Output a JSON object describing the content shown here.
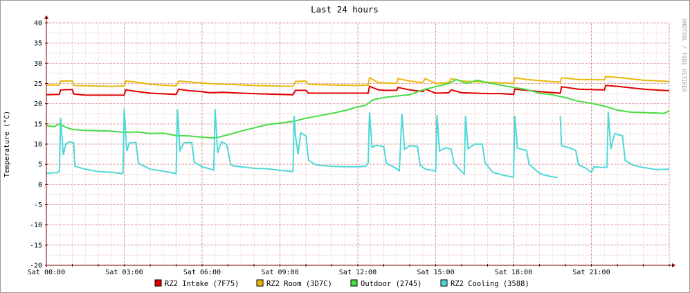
{
  "chart_data": {
    "type": "line",
    "title": "Last 24 hours",
    "ylabel": "Temperature (°C)",
    "watermark": "RRDTOOL / TOBI OETIKER",
    "ylim": [
      -20,
      40
    ],
    "xlim": [
      0,
      24
    ],
    "y_ticks": [
      40,
      35,
      30,
      25,
      20,
      15,
      10,
      5,
      0,
      -5,
      -10,
      -15,
      -20
    ],
    "y_tick_labels": [
      "40",
      "35",
      "30",
      "25",
      "20",
      "15",
      "10",
      "5",
      "0",
      "-5",
      "-10",
      "-15",
      "-20"
    ],
    "x_ticks": [
      0,
      3,
      6,
      9,
      12,
      15,
      18,
      21
    ],
    "x_tick_labels": [
      "Sat 00:00",
      "Sat 03:00",
      "Sat 06:00",
      "Sat 09:00",
      "Sat 12:00",
      "Sat 15:00",
      "Sat 18:00",
      "Sat 21:00"
    ],
    "grid": true,
    "legend_position": "bottom",
    "colors": {
      "background": "#ffffff",
      "minor_grid": "#e6a0a0",
      "major_grid": "#d07070",
      "axis": "#7a0000"
    },
    "series": [
      {
        "name": "RZ2 Intake (7F75)",
        "color": "#e00000",
        "points": [
          [
            0.0,
            22.2
          ],
          [
            0.5,
            22.3
          ],
          [
            0.55,
            23.4
          ],
          [
            1.0,
            23.5
          ],
          [
            1.05,
            22.4
          ],
          [
            1.5,
            22.1
          ],
          [
            2.5,
            22.1
          ],
          [
            3.0,
            22.1
          ],
          [
            3.05,
            23.4
          ],
          [
            3.4,
            23.1
          ],
          [
            4.0,
            22.6
          ],
          [
            5.0,
            22.3
          ],
          [
            5.1,
            23.6
          ],
          [
            5.5,
            23.2
          ],
          [
            6.0,
            23.0
          ],
          [
            6.3,
            22.7
          ],
          [
            6.8,
            22.8
          ],
          [
            7.5,
            22.6
          ],
          [
            8.5,
            22.4
          ],
          [
            9.5,
            22.2
          ],
          [
            9.6,
            23.3
          ],
          [
            10.0,
            23.3
          ],
          [
            10.1,
            22.6
          ],
          [
            11.0,
            22.6
          ],
          [
            12.0,
            22.6
          ],
          [
            12.4,
            22.6
          ],
          [
            12.45,
            24.3
          ],
          [
            12.8,
            23.4
          ],
          [
            13.0,
            23.3
          ],
          [
            13.5,
            23.3
          ],
          [
            13.55,
            24.0
          ],
          [
            14.0,
            23.4
          ],
          [
            14.5,
            23.0
          ],
          [
            14.6,
            23.6
          ],
          [
            15.0,
            22.6
          ],
          [
            15.5,
            22.7
          ],
          [
            15.6,
            23.4
          ],
          [
            16.0,
            22.7
          ],
          [
            17.0,
            22.5
          ],
          [
            17.5,
            22.5
          ],
          [
            18.0,
            22.3
          ],
          [
            18.05,
            23.6
          ],
          [
            18.5,
            23.3
          ],
          [
            19.0,
            23.0
          ],
          [
            19.8,
            22.6
          ],
          [
            19.85,
            24.2
          ],
          [
            20.5,
            23.6
          ],
          [
            21.5,
            23.4
          ],
          [
            21.55,
            24.5
          ],
          [
            22.0,
            24.3
          ],
          [
            23.0,
            23.6
          ],
          [
            24.0,
            23.2
          ]
        ]
      },
      {
        "name": "RZ2 Room (3D7C)",
        "color": "#e8b80a",
        "points": [
          [
            0.0,
            24.6
          ],
          [
            0.5,
            24.6
          ],
          [
            0.55,
            25.6
          ],
          [
            1.0,
            25.6
          ],
          [
            1.05,
            24.5
          ],
          [
            2.5,
            24.3
          ],
          [
            3.0,
            24.4
          ],
          [
            3.05,
            25.6
          ],
          [
            3.4,
            25.4
          ],
          [
            4.0,
            24.8
          ],
          [
            5.0,
            24.4
          ],
          [
            5.1,
            25.6
          ],
          [
            5.5,
            25.4
          ],
          [
            6.0,
            25.1
          ],
          [
            6.5,
            24.9
          ],
          [
            7.0,
            24.8
          ],
          [
            8.0,
            24.5
          ],
          [
            9.5,
            24.3
          ],
          [
            9.6,
            25.5
          ],
          [
            10.0,
            25.6
          ],
          [
            10.1,
            24.8
          ],
          [
            11.0,
            24.6
          ],
          [
            12.0,
            24.5
          ],
          [
            12.4,
            24.6
          ],
          [
            12.45,
            26.4
          ],
          [
            12.8,
            25.2
          ],
          [
            13.5,
            25.0
          ],
          [
            13.55,
            26.2
          ],
          [
            14.0,
            25.6
          ],
          [
            14.5,
            25.2
          ],
          [
            14.6,
            26.2
          ],
          [
            15.0,
            25.0
          ],
          [
            15.5,
            25.2
          ],
          [
            15.6,
            26.2
          ],
          [
            16.0,
            25.6
          ],
          [
            17.0,
            25.3
          ],
          [
            18.0,
            25.0
          ],
          [
            18.05,
            26.4
          ],
          [
            18.5,
            26.0
          ],
          [
            19.0,
            25.7
          ],
          [
            19.8,
            25.3
          ],
          [
            19.85,
            26.4
          ],
          [
            20.5,
            26.0
          ],
          [
            21.5,
            25.9
          ],
          [
            21.55,
            26.7
          ],
          [
            22.0,
            26.5
          ],
          [
            23.0,
            25.8
          ],
          [
            24.0,
            25.5
          ]
        ]
      },
      {
        "name": "Outdoor (2745)",
        "color": "#44dd44",
        "points": [
          [
            0.0,
            14.6
          ],
          [
            0.3,
            14.3
          ],
          [
            0.5,
            15.0
          ],
          [
            0.7,
            14.3
          ],
          [
            1.0,
            13.6
          ],
          [
            1.5,
            13.4
          ],
          [
            2.0,
            13.3
          ],
          [
            2.5,
            13.2
          ],
          [
            3.0,
            12.9
          ],
          [
            3.5,
            13.0
          ],
          [
            4.0,
            12.6
          ],
          [
            4.5,
            12.7
          ],
          [
            5.0,
            12.1
          ],
          [
            5.5,
            12.0
          ],
          [
            6.0,
            11.7
          ],
          [
            6.5,
            11.5
          ],
          [
            7.0,
            12.3
          ],
          [
            7.5,
            13.2
          ],
          [
            8.0,
            14.0
          ],
          [
            8.5,
            14.8
          ],
          [
            9.0,
            15.2
          ],
          [
            9.5,
            15.6
          ],
          [
            10.0,
            16.4
          ],
          [
            10.5,
            17.0
          ],
          [
            11.0,
            17.6
          ],
          [
            11.5,
            18.3
          ],
          [
            12.0,
            19.2
          ],
          [
            12.3,
            19.6
          ],
          [
            12.6,
            21.0
          ],
          [
            13.0,
            21.5
          ],
          [
            13.5,
            21.9
          ],
          [
            14.0,
            22.2
          ],
          [
            14.5,
            23.4
          ],
          [
            15.0,
            24.2
          ],
          [
            15.5,
            25.0
          ],
          [
            15.8,
            26.0
          ],
          [
            16.2,
            25.0
          ],
          [
            16.6,
            25.8
          ],
          [
            17.0,
            25.2
          ],
          [
            17.5,
            24.6
          ],
          [
            18.0,
            24.0
          ],
          [
            18.5,
            23.5
          ],
          [
            19.0,
            22.6
          ],
          [
            19.5,
            22.2
          ],
          [
            20.0,
            21.5
          ],
          [
            20.5,
            20.6
          ],
          [
            21.0,
            20.1
          ],
          [
            21.5,
            19.4
          ],
          [
            22.0,
            18.4
          ],
          [
            22.5,
            17.9
          ],
          [
            23.0,
            17.8
          ],
          [
            23.5,
            17.7
          ],
          [
            23.8,
            17.6
          ],
          [
            24.0,
            18.2
          ]
        ]
      },
      {
        "name": "RZ2 Cooling (3588)",
        "color": "#4dd8d8",
        "points": [
          [
            0.0,
            2.8
          ],
          [
            0.4,
            2.9
          ],
          [
            0.5,
            3.3
          ],
          [
            0.55,
            16.5
          ],
          [
            0.65,
            7.3
          ],
          [
            0.75,
            10.0
          ],
          [
            0.9,
            10.6
          ],
          [
            1.05,
            10.3
          ],
          [
            1.1,
            4.5
          ],
          [
            1.5,
            3.8
          ],
          [
            2.0,
            3.2
          ],
          [
            2.5,
            3.0
          ],
          [
            2.95,
            2.7
          ],
          [
            3.0,
            18.8
          ],
          [
            3.1,
            8.3
          ],
          [
            3.2,
            10.3
          ],
          [
            3.45,
            10.4
          ],
          [
            3.55,
            5.2
          ],
          [
            4.0,
            3.8
          ],
          [
            4.5,
            3.3
          ],
          [
            5.0,
            2.7
          ],
          [
            5.05,
            18.6
          ],
          [
            5.15,
            8.4
          ],
          [
            5.3,
            10.3
          ],
          [
            5.6,
            10.4
          ],
          [
            5.7,
            5.5
          ],
          [
            6.0,
            4.4
          ],
          [
            6.45,
            3.6
          ],
          [
            6.5,
            18.7
          ],
          [
            6.6,
            7.8
          ],
          [
            6.75,
            10.6
          ],
          [
            6.95,
            9.9
          ],
          [
            7.1,
            5.0
          ],
          [
            7.2,
            4.6
          ],
          [
            7.6,
            4.3
          ],
          [
            8.0,
            4.0
          ],
          [
            8.5,
            3.9
          ],
          [
            9.0,
            3.5
          ],
          [
            9.5,
            3.2
          ],
          [
            9.55,
            17.0
          ],
          [
            9.6,
            12.0
          ],
          [
            9.7,
            7.5
          ],
          [
            9.8,
            12.8
          ],
          [
            10.0,
            12.0
          ],
          [
            10.1,
            6.0
          ],
          [
            10.4,
            4.8
          ],
          [
            11.0,
            4.5
          ],
          [
            11.5,
            4.4
          ],
          [
            12.0,
            4.4
          ],
          [
            12.3,
            4.5
          ],
          [
            12.4,
            5.3
          ],
          [
            12.45,
            17.8
          ],
          [
            12.55,
            9.2
          ],
          [
            12.7,
            9.7
          ],
          [
            13.0,
            9.4
          ],
          [
            13.1,
            5.2
          ],
          [
            13.4,
            4.3
          ],
          [
            13.6,
            3.4
          ],
          [
            13.7,
            17.5
          ],
          [
            13.8,
            8.7
          ],
          [
            14.0,
            9.6
          ],
          [
            14.3,
            9.4
          ],
          [
            14.4,
            4.8
          ],
          [
            14.6,
            3.8
          ],
          [
            15.0,
            3.3
          ],
          [
            15.05,
            17.2
          ],
          [
            15.15,
            8.3
          ],
          [
            15.4,
            9.1
          ],
          [
            15.6,
            8.7
          ],
          [
            15.7,
            5.3
          ],
          [
            16.0,
            3.2
          ],
          [
            16.1,
            2.6
          ],
          [
            16.15,
            17.0
          ],
          [
            16.25,
            8.8
          ],
          [
            16.5,
            10.0
          ],
          [
            16.8,
            10.0
          ],
          [
            16.9,
            5.4
          ],
          [
            17.2,
            3.0
          ],
          [
            17.6,
            2.3
          ],
          [
            18.0,
            1.8
          ],
          [
            18.05,
            17.0
          ],
          [
            18.15,
            9.0
          ],
          [
            18.5,
            8.4
          ],
          [
            18.6,
            5.0
          ],
          [
            19.0,
            2.8
          ],
          [
            19.2,
            2.3
          ],
          [
            19.5,
            1.9
          ],
          [
            19.7,
            1.7
          ]
        ],
        "segment_2": [
          [
            19.8,
            17.0
          ],
          [
            19.85,
            9.6
          ],
          [
            20.2,
            9.0
          ],
          [
            20.4,
            8.4
          ],
          [
            20.5,
            4.9
          ],
          [
            20.8,
            4.0
          ],
          [
            21.0,
            3.0
          ],
          [
            21.1,
            4.4
          ],
          [
            21.4,
            4.2
          ],
          [
            21.6,
            4.3
          ],
          [
            21.65,
            18.0
          ],
          [
            21.75,
            8.8
          ],
          [
            21.9,
            12.6
          ],
          [
            22.2,
            12.0
          ],
          [
            22.3,
            5.9
          ],
          [
            22.6,
            4.8
          ],
          [
            23.0,
            4.2
          ],
          [
            23.5,
            3.7
          ],
          [
            24.0,
            3.8
          ]
        ]
      }
    ]
  }
}
